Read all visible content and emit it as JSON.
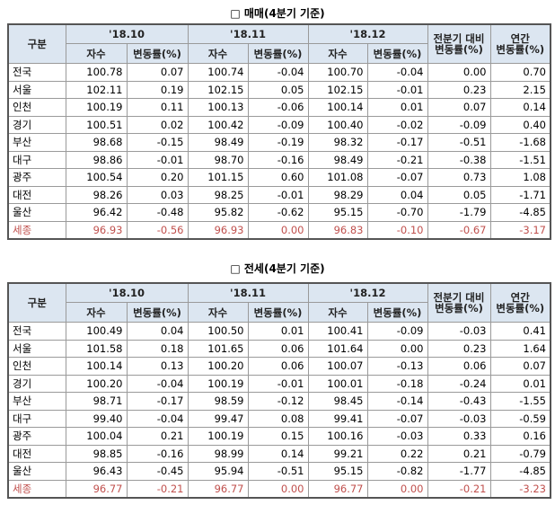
{
  "tables": [
    {
      "title": "□ 매매(4분기 기준)",
      "header": {
        "first": "구분",
        "periods": [
          "'18.10",
          "'18.11",
          "'18.12"
        ],
        "prev": [
          "전분기 대비",
          "변동률(%)"
        ],
        "annual": [
          "연간",
          "변동률(%)"
        ],
        "sub": [
          "자수",
          "변동률(%)",
          "자수",
          "변동률(%)",
          "자수",
          "변동률(%)"
        ]
      },
      "rows": [
        [
          "전국",
          "100.78",
          "0.07",
          "100.74",
          "-0.04",
          "100.70",
          "-0.04",
          "0.00",
          "0.70"
        ],
        [
          "서울",
          "102.11",
          "0.19",
          "102.15",
          "0.05",
          "102.15",
          "-0.01",
          "0.23",
          "2.15"
        ],
        [
          "인천",
          "100.19",
          "0.11",
          "100.13",
          "-0.06",
          "100.14",
          "0.01",
          "0.07",
          "0.14"
        ],
        [
          "경기",
          "100.51",
          "0.02",
          "100.42",
          "-0.09",
          "100.40",
          "-0.02",
          "-0.09",
          "0.40"
        ],
        [
          "부산",
          "98.68",
          "-0.15",
          "98.49",
          "-0.19",
          "98.32",
          "-0.17",
          "-0.51",
          "-1.68"
        ],
        [
          "대구",
          "98.86",
          "-0.01",
          "98.70",
          "-0.16",
          "98.49",
          "-0.21",
          "-0.38",
          "-1.51"
        ],
        [
          "광주",
          "100.54",
          "0.20",
          "101.15",
          "0.60",
          "101.08",
          "-0.07",
          "0.73",
          "1.08"
        ],
        [
          "대전",
          "98.26",
          "0.03",
          "98.25",
          "-0.01",
          "98.29",
          "0.04",
          "0.05",
          "-1.71"
        ],
        [
          "울산",
          "96.42",
          "-0.48",
          "95.82",
          "-0.62",
          "95.15",
          "-0.70",
          "-1.79",
          "-4.85"
        ],
        [
          "세종",
          "96.93",
          "-0.56",
          "96.93",
          "0.00",
          "96.83",
          "-0.10",
          "-0.67",
          "-3.17"
        ]
      ]
    },
    {
      "title": "□ 전세(4분기 기준)",
      "header": {
        "first": "구분",
        "periods": [
          "'18.10",
          "'18.11",
          "'18.12"
        ],
        "prev": [
          "전분기 대비",
          "변동률(%)"
        ],
        "annual": [
          "연간",
          "변동률(%)"
        ],
        "sub": [
          "자수",
          "변동률(%)",
          "자수",
          "변동률(%)",
          "자수",
          "변동률(%)"
        ]
      },
      "rows": [
        [
          "전국",
          "100.49",
          "0.04",
          "100.50",
          "0.01",
          "100.41",
          "-0.09",
          "-0.03",
          "0.41"
        ],
        [
          "서울",
          "101.58",
          "0.18",
          "101.65",
          "0.06",
          "101.64",
          "0.00",
          "0.23",
          "1.64"
        ],
        [
          "인천",
          "100.14",
          "0.13",
          "100.20",
          "0.06",
          "100.07",
          "-0.13",
          "0.06",
          "0.07"
        ],
        [
          "경기",
          "100.20",
          "-0.04",
          "100.19",
          "-0.01",
          "100.01",
          "-0.18",
          "-0.24",
          "0.01"
        ],
        [
          "부산",
          "98.71",
          "-0.17",
          "98.59",
          "-0.12",
          "98.45",
          "-0.14",
          "-0.43",
          "-1.55"
        ],
        [
          "대구",
          "99.40",
          "-0.04",
          "99.47",
          "0.08",
          "99.41",
          "-0.07",
          "-0.03",
          "-0.59"
        ],
        [
          "광주",
          "100.04",
          "0.21",
          "100.19",
          "0.15",
          "100.16",
          "-0.03",
          "0.33",
          "0.16"
        ],
        [
          "대전",
          "98.85",
          "-0.16",
          "98.99",
          "0.14",
          "99.21",
          "0.22",
          "0.21",
          "-0.79"
        ],
        [
          "울산",
          "96.43",
          "-0.45",
          "95.94",
          "-0.51",
          "95.15",
          "-0.82",
          "-1.77",
          "-4.85"
        ],
        [
          "세종",
          "96.77",
          "-0.21",
          "96.77",
          "0.00",
          "96.77",
          "0.00",
          "-0.21",
          "-3.23"
        ]
      ]
    }
  ]
}
